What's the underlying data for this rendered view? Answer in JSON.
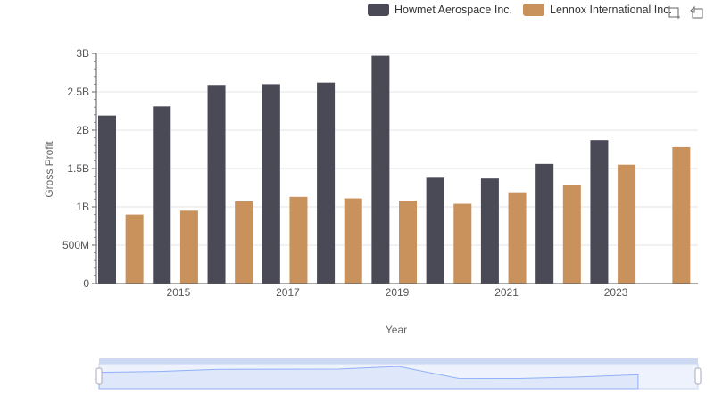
{
  "legend": {
    "series_a": "Howmet Aerospace Inc.",
    "series_b": "Lennox International Inc."
  },
  "toolbox": {
    "zoom_icon": "data-zoom-icon",
    "restore_icon": "restore-icon"
  },
  "colors": {
    "series_a": "#4a4a56",
    "series_b": "#c9915b",
    "grid": "#e6e6ea",
    "axis": "#555555",
    "slider_fill": "#dfe7fb",
    "slider_line": "#8fb0f7"
  },
  "chart_data": {
    "type": "bar",
    "xlabel": "Year",
    "ylabel": "Gross Profit",
    "ylim": [
      0,
      3000000000
    ],
    "y_ticks": [
      "0",
      "500M",
      "1B",
      "1.5B",
      "2B",
      "2.5B",
      "3B"
    ],
    "x_tick_labels": [
      "2015",
      "2017",
      "2019",
      "2021",
      "2023"
    ],
    "categories": [
      "2014",
      "2015",
      "2016",
      "2017",
      "2018",
      "2019",
      "2020",
      "2021",
      "2022",
      "2023",
      "2024"
    ],
    "grid": true,
    "legend_position": "top-right",
    "series": [
      {
        "name": "Howmet Aerospace Inc.",
        "values": [
          2190000000,
          2310000000,
          2590000000,
          2600000000,
          2620000000,
          2970000000,
          1380000000,
          1370000000,
          1560000000,
          1870000000,
          null
        ]
      },
      {
        "name": "Lennox International Inc.",
        "values": [
          900000000,
          950000000,
          1070000000,
          1130000000,
          1110000000,
          1080000000,
          1040000000,
          1190000000,
          1280000000,
          1550000000,
          1780000000
        ]
      }
    ]
  }
}
